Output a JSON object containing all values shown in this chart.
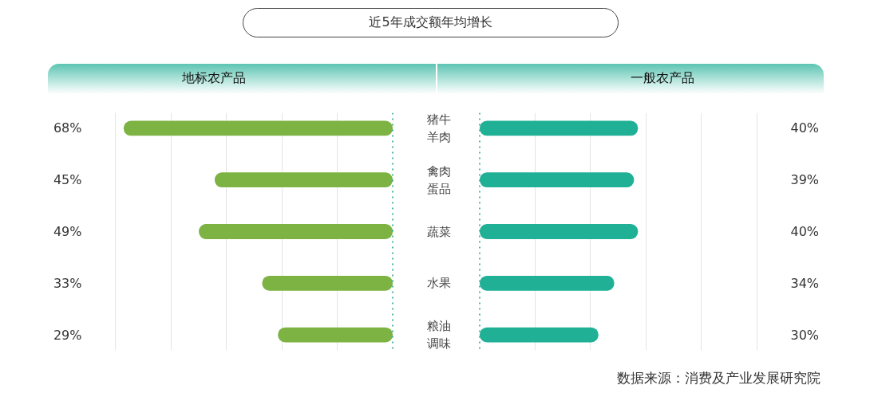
{
  "chart_data": [
    {
      "type": "bar",
      "orientation": "horizontal",
      "title": "近5年成交额年均增长",
      "subtitle": "地标农产品",
      "categories": [
        "猪牛羊肉",
        "禽肉蛋品",
        "蔬菜",
        "水果",
        "粮油调味"
      ],
      "values": [
        68,
        45,
        49,
        33,
        29
      ],
      "value_labels": [
        "68%",
        "45%",
        "49%",
        "33%",
        "29%"
      ],
      "color": "#7cb342",
      "xlim": [
        70,
        0
      ],
      "xticks": [
        {
          "value": 70,
          "label": null
        },
        {
          "value": 56,
          "label": null
        },
        {
          "value": 42,
          "label": null
        },
        {
          "value": 28,
          "label": null
        },
        {
          "value": 14,
          "label": null
        }
      ],
      "grid": "x",
      "tick_labels": "y",
      "ref_lines": [
        {
          "axis": "x",
          "value": 0,
          "color": "#2aa792",
          "line_style": "dotted"
        }
      ]
    },
    {
      "type": "bar",
      "orientation": "horizontal",
      "subtitle": "一般农产品",
      "categories": [
        "猪牛羊肉",
        "禽肉蛋品",
        "蔬菜",
        "水果",
        "粮油调味"
      ],
      "values": [
        40,
        39,
        40,
        34,
        30
      ],
      "value_labels": [
        "40%",
        "39%",
        "40%",
        "34%",
        "30%"
      ],
      "color": "#1fb096",
      "xlim": [
        0,
        70
      ],
      "xticks": [
        {
          "value": 14,
          "label": null
        },
        {
          "value": 28,
          "label": null
        },
        {
          "value": 42,
          "label": null
        },
        {
          "value": 56,
          "label": null
        },
        {
          "value": 70,
          "label": null
        }
      ],
      "grid": "x",
      "tick_labels": false,
      "ref_lines": [
        {
          "axis": "x",
          "value": 0,
          "color": "#2aa792",
          "line_style": "dotted"
        }
      ],
      "annotations": [
        "数据来源：消费及产业发展研究院"
      ]
    }
  ]
}
